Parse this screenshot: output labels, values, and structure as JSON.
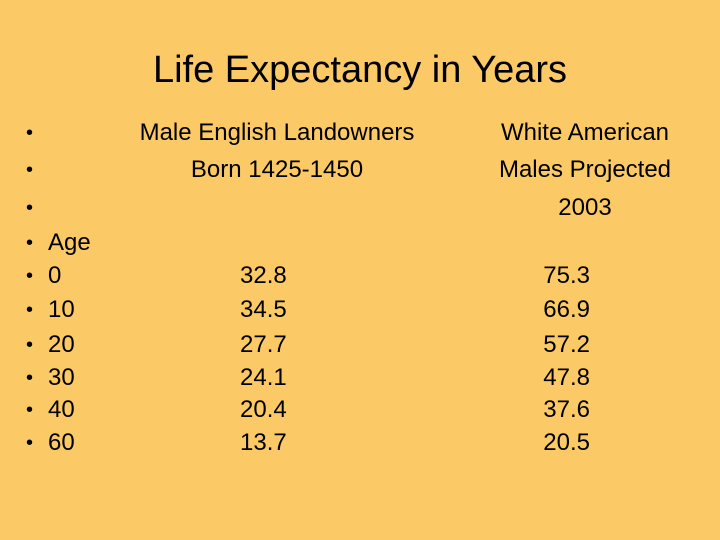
{
  "header": {
    "title": "Life Expectancy in Years"
  },
  "table": {
    "first_column_header": "Age",
    "columns": [
      {
        "header_lines": [
          "Male English Landowners",
          "Born 1425-1450"
        ]
      },
      {
        "header_lines": [
          "White American",
          "Males Projected",
          "2003"
        ]
      }
    ],
    "rows": [
      [
        0,
        32.8,
        75.3
      ],
      [
        10,
        34.5,
        66.9
      ],
      [
        20,
        27.7,
        57.2
      ],
      [
        30,
        24.1,
        47.8
      ],
      [
        40,
        20.4,
        37.6
      ],
      [
        60,
        13.7,
        20.5
      ]
    ]
  }
}
